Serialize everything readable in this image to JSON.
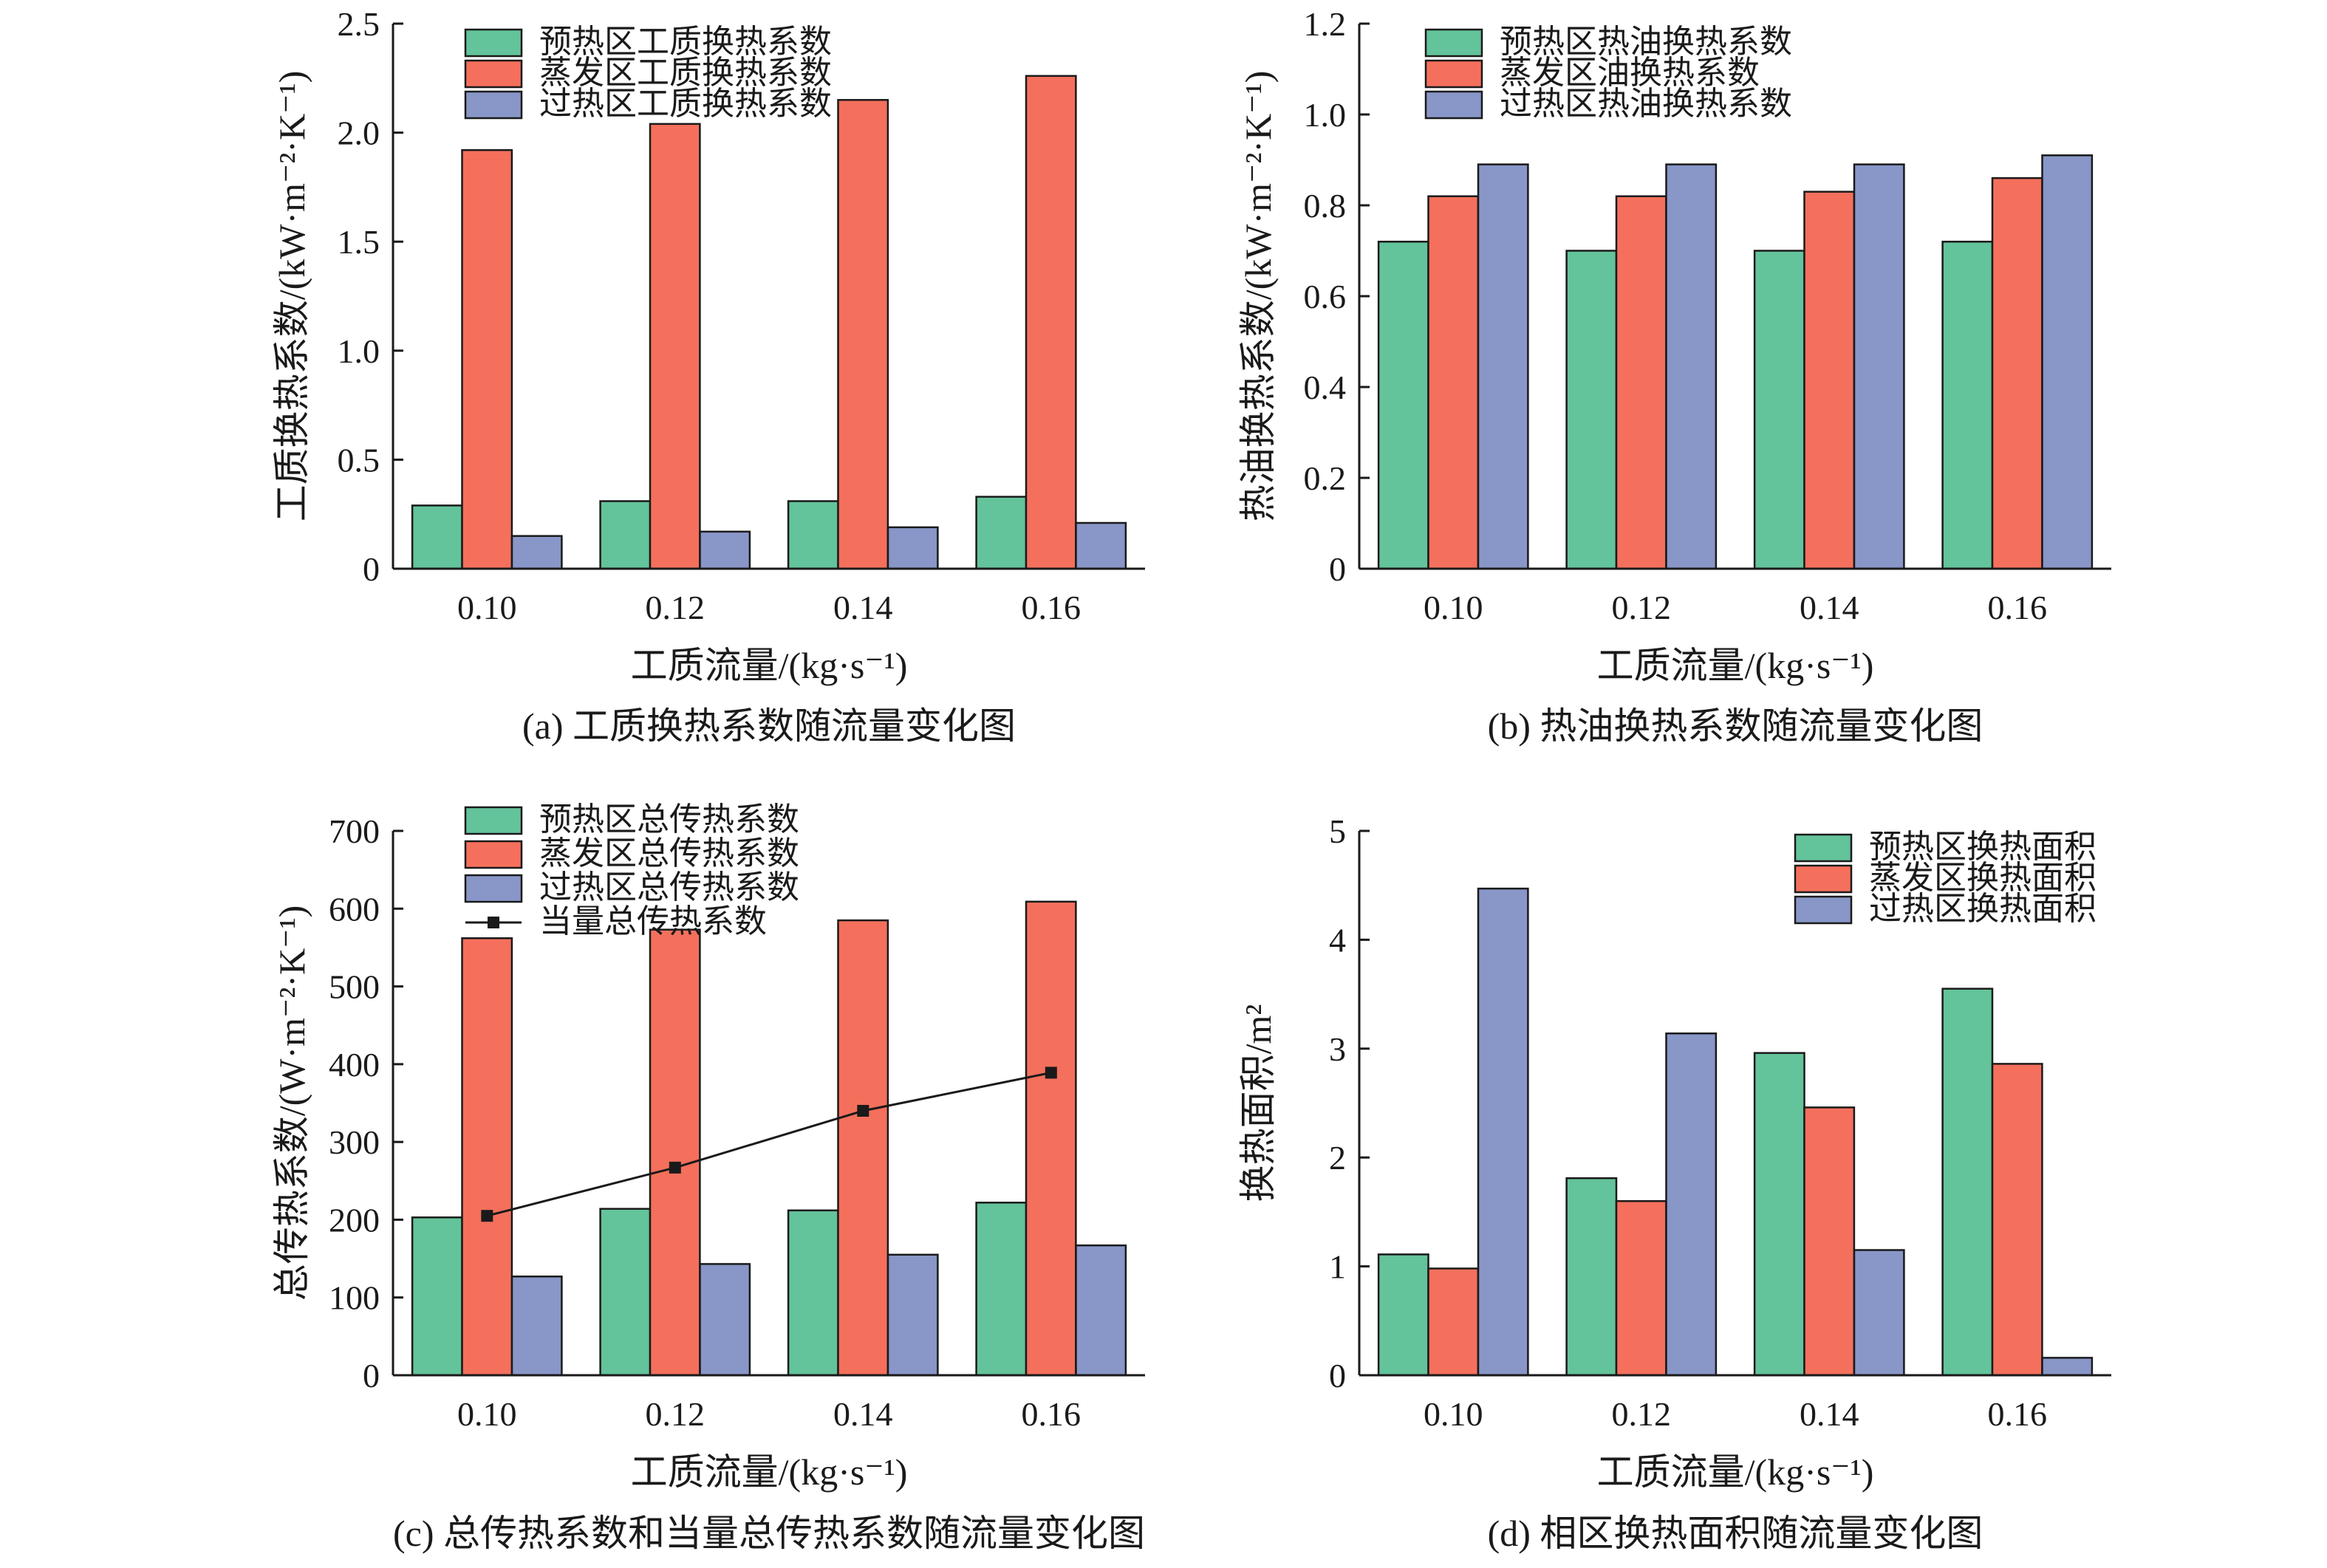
{
  "colors": {
    "preheat": "#63c39a",
    "evaporate": "#f4705c",
    "superheat": "#8896c8",
    "line": "#1a1a1a",
    "edge": "#1a1a1a"
  },
  "chart_data": [
    {
      "id": "a",
      "type": "bar",
      "caption": "(a) 工质换热系数随流量变化图",
      "xlabel": "工质流量/(kg·s⁻¹)",
      "ylabel": "工质换热系数/(kW·m⁻²·K⁻¹)",
      "categories": [
        "0.10",
        "0.12",
        "0.14",
        "0.16"
      ],
      "ylim": [
        0,
        2.5
      ],
      "yticks": [
        {
          "v": 0,
          "label": "0"
        },
        {
          "v": 0.5,
          "label": "0.5"
        },
        {
          "v": 1.0,
          "label": "1.0"
        },
        {
          "v": 1.5,
          "label": "1.5"
        },
        {
          "v": 2.0,
          "label": "2.0"
        },
        {
          "v": 2.5,
          "label": "2.5"
        }
      ],
      "legend_position": "top-left",
      "series": [
        {
          "name": "预热区工质换热系数",
          "color_key": "preheat",
          "values": [
            0.29,
            0.31,
            0.31,
            0.33
          ]
        },
        {
          "name": "蒸发区工质换热系数",
          "color_key": "evaporate",
          "values": [
            1.92,
            2.04,
            2.15,
            2.26
          ]
        },
        {
          "name": "过热区工质换热系数",
          "color_key": "superheat",
          "values": [
            0.15,
            0.17,
            0.19,
            0.21
          ]
        }
      ]
    },
    {
      "id": "b",
      "type": "bar",
      "caption": "(b) 热油换热系数随流量变化图",
      "xlabel": "工质流量/(kg·s⁻¹)",
      "ylabel": "热油换热系数/(kW·m⁻²·K⁻¹)",
      "categories": [
        "0.10",
        "0.12",
        "0.14",
        "0.16"
      ],
      "ylim": [
        0,
        1.2
      ],
      "yticks": [
        {
          "v": 0,
          "label": "0"
        },
        {
          "v": 0.2,
          "label": "0.2"
        },
        {
          "v": 0.4,
          "label": "0.4"
        },
        {
          "v": 0.6,
          "label": "0.6"
        },
        {
          "v": 0.8,
          "label": "0.8"
        },
        {
          "v": 1.0,
          "label": "1.0"
        },
        {
          "v": 1.2,
          "label": "1.2"
        }
      ],
      "legend_position": "top-left",
      "series": [
        {
          "name": "预热区热油换热系数",
          "color_key": "preheat",
          "values": [
            0.72,
            0.7,
            0.7,
            0.72
          ]
        },
        {
          "name": "蒸发区油换热系数",
          "color_key": "evaporate",
          "values": [
            0.82,
            0.82,
            0.83,
            0.86
          ]
        },
        {
          "name": "过热区热油换热系数",
          "color_key": "superheat",
          "values": [
            0.89,
            0.89,
            0.89,
            0.91
          ]
        }
      ]
    },
    {
      "id": "c",
      "type": "bar",
      "caption": "(c) 总传热系数和当量总传热系数随流量变化图",
      "xlabel": "工质流量/(kg·s⁻¹)",
      "ylabel": "总传热系数/(W·m⁻²·K⁻¹)",
      "categories": [
        "0.10",
        "0.12",
        "0.14",
        "0.16"
      ],
      "ylim": [
        0,
        700
      ],
      "yticks": [
        {
          "v": 0,
          "label": "0"
        },
        {
          "v": 100,
          "label": "100"
        },
        {
          "v": 200,
          "label": "200"
        },
        {
          "v": 300,
          "label": "300"
        },
        {
          "v": 400,
          "label": "400"
        },
        {
          "v": 500,
          "label": "500"
        },
        {
          "v": 600,
          "label": "600"
        },
        {
          "v": 700,
          "label": "700"
        }
      ],
      "legend_position": "top-left",
      "series": [
        {
          "name": "预热区总传热系数",
          "color_key": "preheat",
          "values": [
            203,
            214,
            212,
            222
          ]
        },
        {
          "name": "蒸发区总传热系数",
          "color_key": "evaporate",
          "values": [
            562,
            573,
            585,
            609
          ]
        },
        {
          "name": "过热区总传热系数",
          "color_key": "superheat",
          "values": [
            127,
            143,
            155,
            167
          ]
        }
      ],
      "line_series": {
        "name": "当量总传热系数",
        "values": [
          205,
          267,
          340,
          389
        ]
      }
    },
    {
      "id": "d",
      "type": "bar",
      "caption": "(d) 相区换热面积随流量变化图",
      "xlabel": "工质流量/(kg·s⁻¹)",
      "ylabel": "换热面积/m²",
      "categories": [
        "0.10",
        "0.12",
        "0.14",
        "0.16"
      ],
      "ylim": [
        0,
        5
      ],
      "yticks": [
        {
          "v": 0,
          "label": "0"
        },
        {
          "v": 1,
          "label": "1"
        },
        {
          "v": 2,
          "label": "2"
        },
        {
          "v": 3,
          "label": "3"
        },
        {
          "v": 4,
          "label": "4"
        },
        {
          "v": 5,
          "label": "5"
        }
      ],
      "legend_position": "top-right",
      "series": [
        {
          "name": "预热区换热面积",
          "color_key": "preheat",
          "values": [
            1.11,
            1.81,
            2.96,
            3.55
          ]
        },
        {
          "name": "蒸发区换热面积",
          "color_key": "evaporate",
          "values": [
            0.98,
            1.6,
            2.46,
            2.86
          ]
        },
        {
          "name": "过热区换热面积",
          "color_key": "superheat",
          "values": [
            4.47,
            3.14,
            1.15,
            0.16
          ]
        }
      ]
    }
  ]
}
